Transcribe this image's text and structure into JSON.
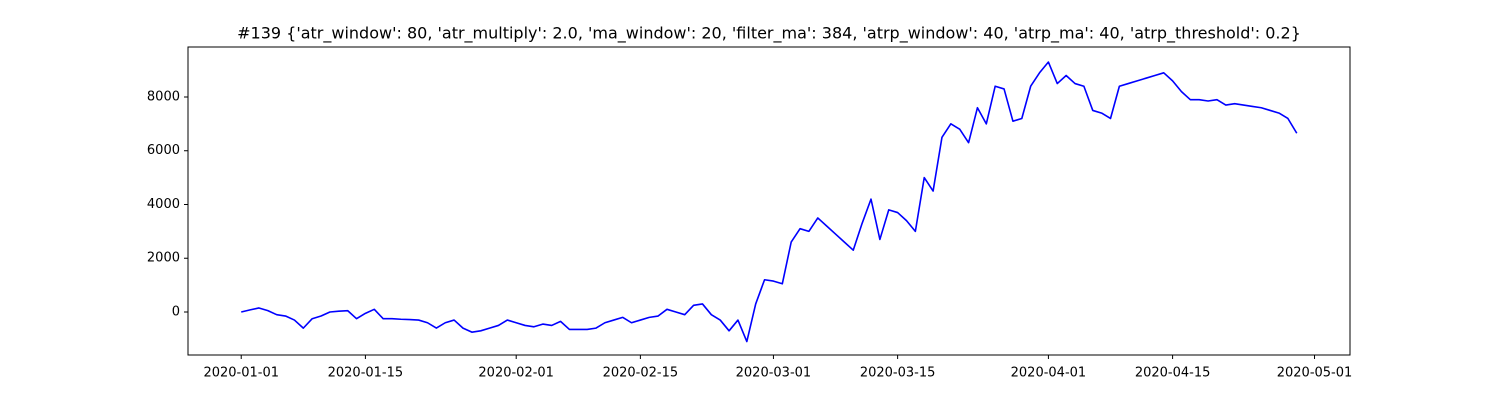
{
  "chart_data": {
    "type": "line",
    "title": "#139 {'atr_window': 80, 'atr_multiply': 2.0, 'ma_window': 20, 'filter_ma': 384, 'atrp_window': 40, 'atrp_ma': 40, 'atrp_threshold': 0.2}",
    "x": [
      "2020-01-01",
      "2020-01-02",
      "2020-01-03",
      "2020-01-04",
      "2020-01-05",
      "2020-01-06",
      "2020-01-07",
      "2020-01-08",
      "2020-01-09",
      "2020-01-10",
      "2020-01-11",
      "2020-01-12",
      "2020-01-13",
      "2020-01-14",
      "2020-01-15",
      "2020-01-16",
      "2020-01-17",
      "2020-01-18",
      "2020-01-19",
      "2020-01-20",
      "2020-01-21",
      "2020-01-22",
      "2020-01-23",
      "2020-01-24",
      "2020-01-25",
      "2020-01-26",
      "2020-01-27",
      "2020-01-28",
      "2020-01-29",
      "2020-01-30",
      "2020-01-31",
      "2020-02-01",
      "2020-02-02",
      "2020-02-03",
      "2020-02-04",
      "2020-02-05",
      "2020-02-06",
      "2020-02-07",
      "2020-02-08",
      "2020-02-09",
      "2020-02-10",
      "2020-02-11",
      "2020-02-12",
      "2020-02-13",
      "2020-02-14",
      "2020-02-15",
      "2020-02-16",
      "2020-02-17",
      "2020-02-18",
      "2020-02-19",
      "2020-02-20",
      "2020-02-21",
      "2020-02-22",
      "2020-02-23",
      "2020-02-24",
      "2020-02-25",
      "2020-02-26",
      "2020-02-27",
      "2020-02-28",
      "2020-02-29",
      "2020-03-01",
      "2020-03-02",
      "2020-03-03",
      "2020-03-04",
      "2020-03-05",
      "2020-03-06",
      "2020-03-07",
      "2020-03-08",
      "2020-03-09",
      "2020-03-10",
      "2020-03-11",
      "2020-03-12",
      "2020-03-13",
      "2020-03-14",
      "2020-03-15",
      "2020-03-16",
      "2020-03-17",
      "2020-03-18",
      "2020-03-19",
      "2020-03-20",
      "2020-03-21",
      "2020-03-22",
      "2020-03-23",
      "2020-03-24",
      "2020-03-25",
      "2020-03-26",
      "2020-03-27",
      "2020-03-28",
      "2020-03-29",
      "2020-03-30",
      "2020-03-31",
      "2020-04-01",
      "2020-04-02",
      "2020-04-03",
      "2020-04-04",
      "2020-04-05",
      "2020-04-06",
      "2020-04-07",
      "2020-04-08",
      "2020-04-09",
      "2020-04-10",
      "2020-04-11",
      "2020-04-12",
      "2020-04-13",
      "2020-04-14",
      "2020-04-15",
      "2020-04-16",
      "2020-04-17",
      "2020-04-18",
      "2020-04-19",
      "2020-04-20",
      "2020-04-21",
      "2020-04-22",
      "2020-04-23",
      "2020-04-24",
      "2020-04-25",
      "2020-04-26",
      "2020-04-27",
      "2020-04-28",
      "2020-04-29"
    ],
    "series": [
      {
        "color": "#0000ff",
        "values": [
          0,
          80,
          150,
          50,
          -100,
          -150,
          -300,
          -600,
          -250,
          -150,
          0,
          30,
          50,
          -250,
          -50,
          100,
          -250,
          -250,
          -270,
          -280,
          -300,
          -400,
          -600,
          -400,
          -300,
          -600,
          -750,
          -700,
          -600,
          -500,
          -300,
          -400,
          -500,
          -550,
          -450,
          -500,
          -350,
          -650,
          -650,
          -650,
          -600,
          -400,
          -300,
          -200,
          -400,
          -300,
          -200,
          -150,
          100,
          0,
          -100,
          250,
          300,
          -100,
          -300,
          -700,
          -300,
          -1100,
          300,
          1200,
          1150,
          1050,
          2600,
          3100,
          3000,
          3500,
          3200,
          2900,
          2600,
          2300,
          3300,
          4200,
          2700,
          3800,
          3700,
          3400,
          3000,
          5000,
          4500,
          6500,
          7000,
          6800,
          6300,
          7600,
          7000,
          8400,
          8300,
          7100,
          7200,
          8400,
          8900,
          9300,
          8500,
          8800,
          8500,
          8400,
          7500,
          7400,
          7200,
          8400,
          8500,
          8600,
          8700,
          8800,
          8900,
          8600,
          8200,
          7900,
          7900,
          7850,
          7900,
          7700,
          7750,
          7700,
          7650,
          7600,
          7500,
          7400,
          7200,
          6650
        ]
      }
    ],
    "xlim": [
      "2019-12-26",
      "2020-05-05"
    ],
    "xticks": [
      "2020-01-01",
      "2020-01-15",
      "2020-02-01",
      "2020-02-15",
      "2020-03-01",
      "2020-03-15",
      "2020-04-01",
      "2020-04-15",
      "2020-05-01"
    ],
    "ylim": [
      -1600,
      9860
    ],
    "yticks": [
      0,
      2000,
      4000,
      6000,
      8000
    ]
  }
}
